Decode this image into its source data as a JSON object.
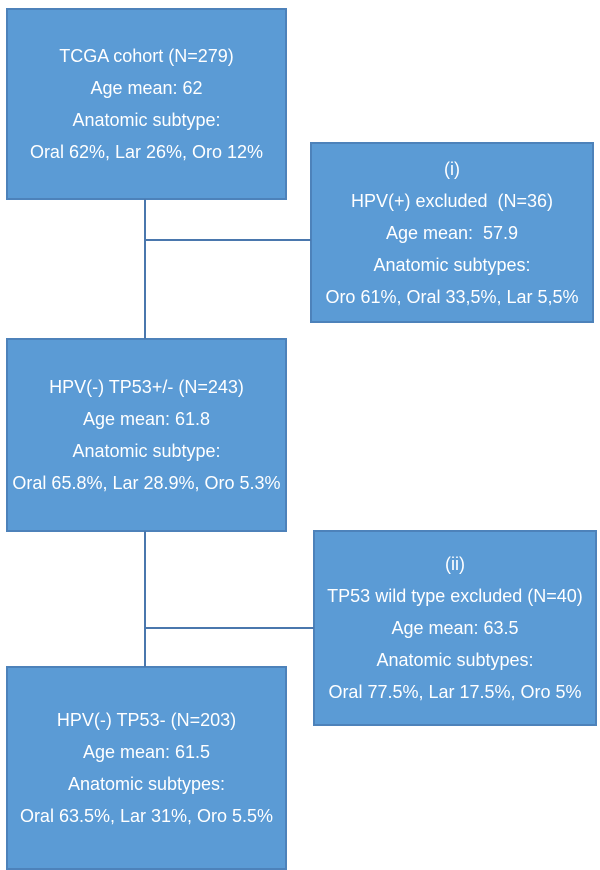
{
  "figure": {
    "type": "flowchart",
    "background": "#ffffff",
    "node_fill": "#5b9bd5",
    "node_border": "#4d82ba",
    "connector_color": "#4a77ad",
    "text_color": "#ffffff"
  },
  "nodes": {
    "tcga": {
      "lines": [
        "TCGA cohort (N=279)",
        "Age mean: 62",
        "Anatomic subtype:",
        "Oral 62%, Lar 26%, Oro 12%"
      ]
    },
    "excluded_i": {
      "lines": [
        "(i)",
        "HPV(+) excluded  (N=36)",
        "Age mean:  57.9",
        "Anatomic subtypes:",
        "Oro 61%, Oral 33,5%, Lar 5,5%"
      ]
    },
    "hpv_neg_tp53_any": {
      "lines": [
        "HPV(-) TP53+/- (N=243)",
        "Age mean: 61.8",
        "Anatomic subtype:",
        "Oral 65.8%, Lar 28.9%, Oro 5.3%"
      ]
    },
    "excluded_ii": {
      "lines": [
        "(ii)",
        "TP53 wild type excluded (N=40)",
        "Age mean: 63.5",
        "Anatomic subtypes:",
        "Oral 77.5%, Lar 17.5%, Oro 5%"
      ]
    },
    "hpv_neg_tp53_mut": {
      "lines": [
        "HPV(-) TP53- (N=203)",
        "Age mean: 61.5",
        "Anatomic subtypes:",
        "Oral 63.5%, Lar 31%, Oro 5.5%"
      ]
    }
  }
}
